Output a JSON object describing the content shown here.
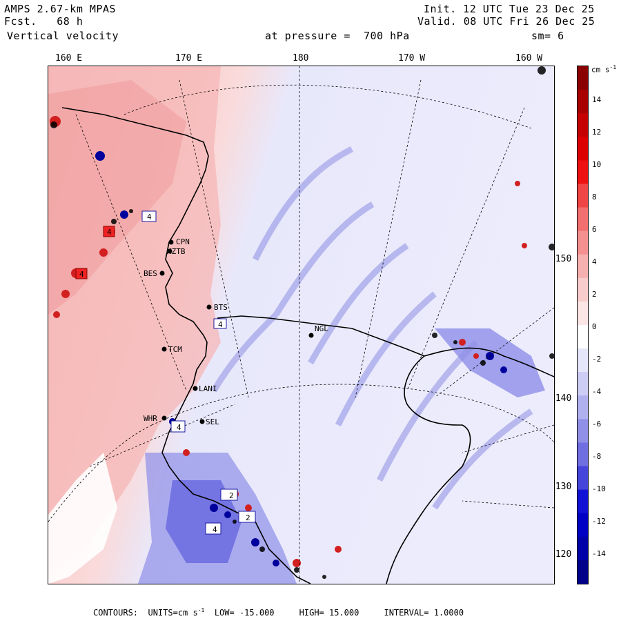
{
  "header": {
    "model": "AMPS 2.67-km MPAS",
    "forecast_label": "Fcst.",
    "forecast_hours": "68 h",
    "field": "Vertical velocity",
    "init": "Init. 12 UTC Tue 23 Dec 25",
    "valid": "Valid. 08 UTC Fri 26 Dec 25",
    "pressure_label": "at pressure =  700 hPa",
    "smoothing": "sm= 6"
  },
  "longitude_labels": [
    "160 E",
    "170 E",
    "180",
    "170 W",
    "160 W"
  ],
  "latitude_labels": [
    "150 W",
    "140 W",
    "130 W",
    "120 W"
  ],
  "colorbar": {
    "units": "cm s",
    "exponent": "-1",
    "labels": [
      "14",
      "12",
      "10",
      "8",
      "6",
      "4",
      "2",
      "0",
      "-2",
      "-4",
      "-6",
      "-8",
      "-10",
      "-12",
      "-14"
    ],
    "colors": [
      "#8b0000",
      "#a80000",
      "#c40000",
      "#dd0000",
      "#ee1111",
      "#f04545",
      "#f26f6f",
      "#f59090",
      "#f7b0b0",
      "#f9cccc",
      "#fbe5e5",
      "#ffffff",
      "#e6e6fa",
      "#ccccf4",
      "#b0b0ee",
      "#9090e8",
      "#6f6fe2",
      "#4545dc",
      "#1111d5",
      "#0000c4",
      "#0000a8",
      "#00008b"
    ]
  },
  "stations": [
    "CPN",
    "MZTB",
    "BES",
    "BTS",
    "NGL",
    "TCM",
    "LANI",
    "WHR",
    "SEL"
  ],
  "box_labels": [
    "4",
    "4",
    "4",
    "4",
    "4",
    "2",
    "2",
    "4"
  ],
  "footer": {
    "contours_label": "CONTOURS:",
    "units_label": "UNITS=cm s",
    "units_exp": "-1",
    "low": "LOW= -15.000",
    "high": "HIGH= 15.000",
    "interval": "INTERVAL= 1.0000"
  }
}
